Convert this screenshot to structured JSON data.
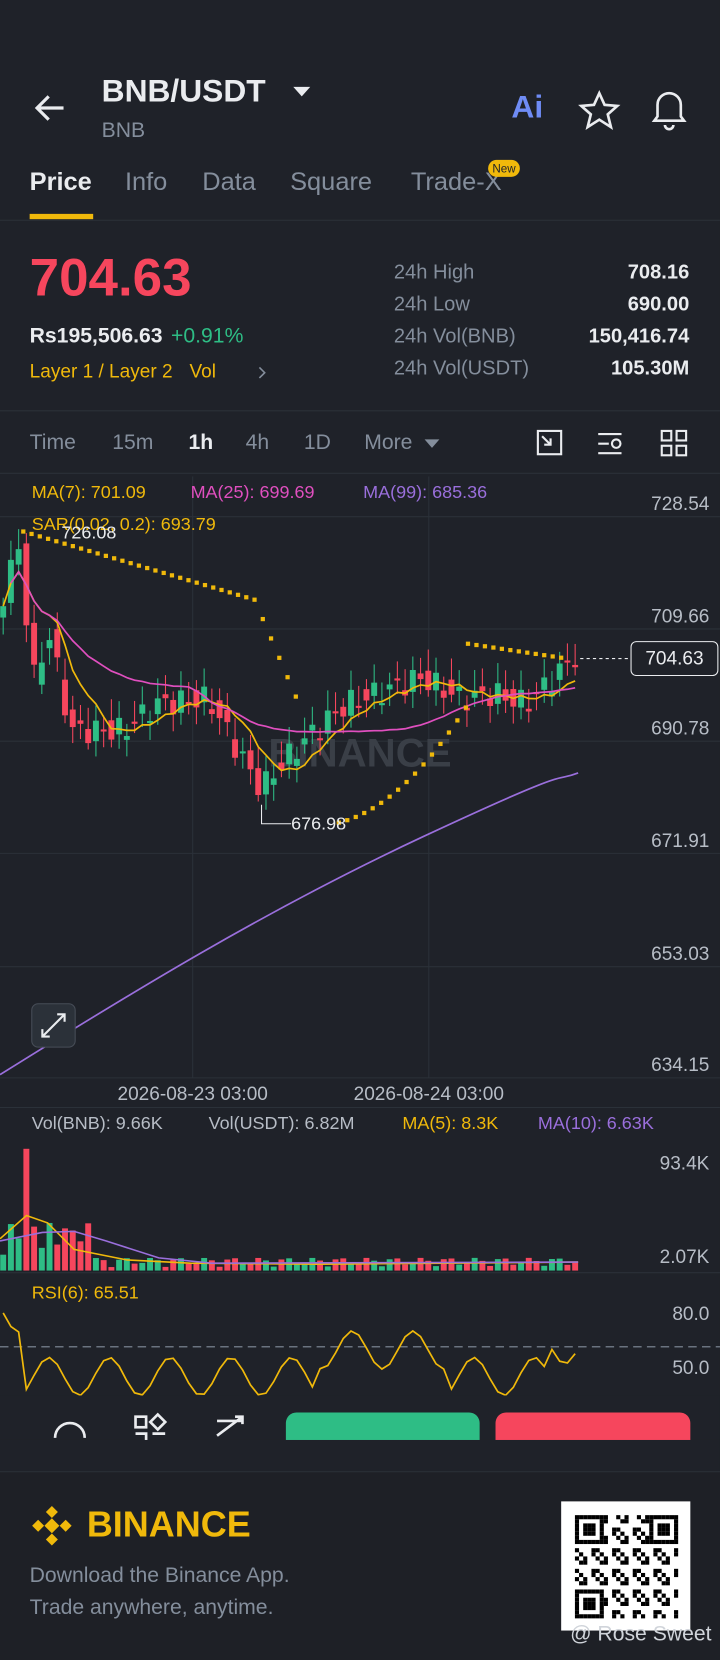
{
  "header": {
    "pair": "BNB/USDT",
    "base": "BNB",
    "ai": "Ai"
  },
  "tabs": [
    "Price",
    "Info",
    "Data",
    "Square",
    "Trade-X"
  ],
  "new_badge": "New",
  "ticker": {
    "price": "704.63",
    "fiat": "Rs195,506.63",
    "change": "+0.91%",
    "tag": "Layer 1 / Layer 2",
    "vol": "Vol",
    "stats": [
      {
        "label": "24h High",
        "value": "708.16"
      },
      {
        "label": "24h Low",
        "value": "690.00"
      },
      {
        "label": "24h Vol(BNB)",
        "value": "150,416.74"
      },
      {
        "label": "24h Vol(USDT)",
        "value": "105.30M"
      }
    ]
  },
  "intervals": [
    "Time",
    "15m",
    "1h",
    "4h",
    "1D",
    "More"
  ],
  "chart": {
    "ma7": "MA(7): 701.09",
    "ma25": "MA(25): 699.69",
    "ma99": "MA(99): 685.36",
    "sar": "SAR(0.02, 0.2): 693.79",
    "price_axis": [
      "728.54",
      "709.66",
      "690.78",
      "671.91",
      "653.03",
      "634.15"
    ],
    "last_price": "704.63",
    "high_marker": "726.08",
    "low_marker": "676.98",
    "watermark": "BINANCE",
    "dates": [
      "2026-08-23 03:00",
      "2026-08-24 03:00"
    ]
  },
  "volume": {
    "vol_bnb": "Vol(BNB): 9.66K",
    "vol_usdt": "Vol(USDT): 6.82M",
    "ma5": "MA(5): 8.3K",
    "ma10": "MA(10): 6.63K",
    "axis": [
      "93.4K",
      "2.07K"
    ]
  },
  "rsi": {
    "label": "RSI(6): 65.51",
    "axis": [
      "80.0",
      "50.0"
    ]
  },
  "footer": {
    "brand": "BINANCE",
    "line1": "Download the Binance App.",
    "line2": "Trade anywhere, anytime.",
    "credit": "@ Rose Sweet"
  }
}
